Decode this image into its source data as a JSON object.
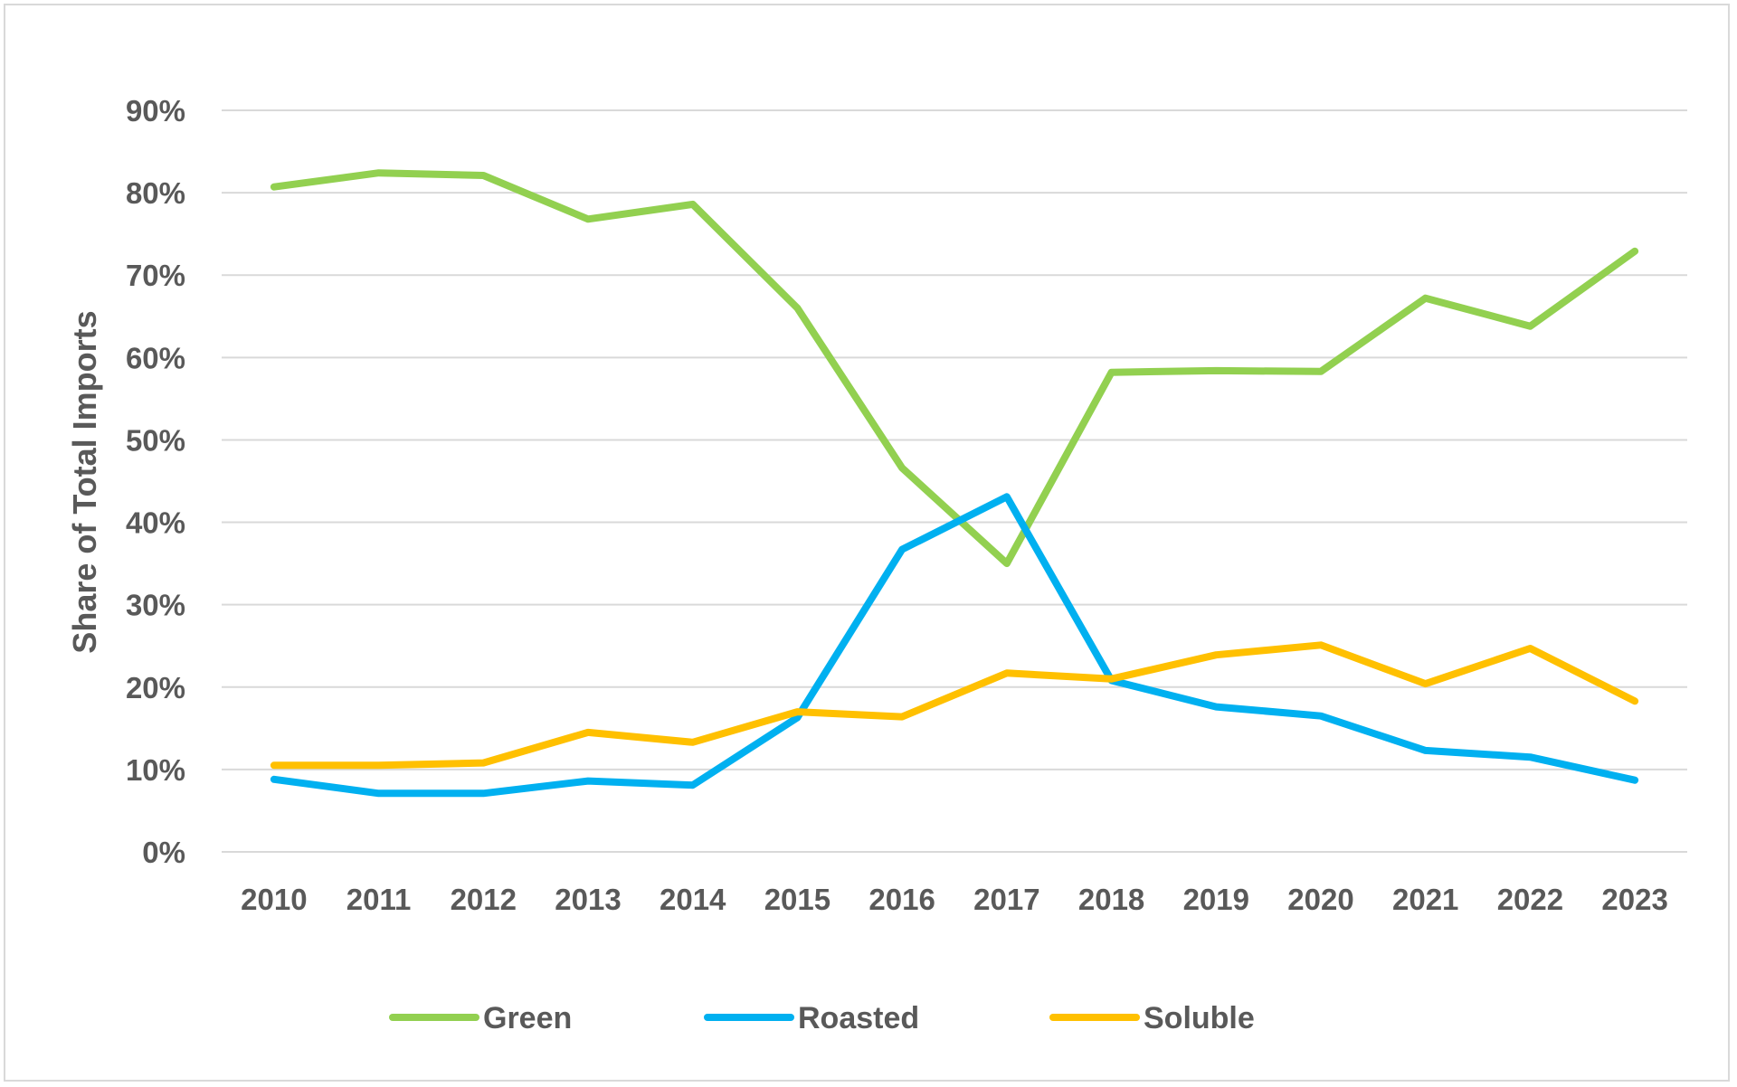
{
  "chart_data": {
    "type": "line",
    "title": "",
    "xlabel": "",
    "ylabel": "Share of Total Imports",
    "x": [
      "2010",
      "2011",
      "2012",
      "2013",
      "2014",
      "2015",
      "2016",
      "2017",
      "2018",
      "2019",
      "2020",
      "2021",
      "2022",
      "2023"
    ],
    "yticks": [
      "0%",
      "10%",
      "20%",
      "30%",
      "40%",
      "50%",
      "60%",
      "70%",
      "80%",
      "90%"
    ],
    "ylim": [
      0,
      90
    ],
    "grid": true,
    "legend_position": "bottom",
    "series": [
      {
        "name": "Green",
        "color": "#92D050",
        "values": [
          80.7,
          82.4,
          82.1,
          76.8,
          78.6,
          66.0,
          46.6,
          35.0,
          58.2,
          58.4,
          58.3,
          67.2,
          63.8,
          72.9
        ]
      },
      {
        "name": "Roasted",
        "color": "#00B0F0",
        "values": [
          8.8,
          7.1,
          7.1,
          8.6,
          8.1,
          16.3,
          36.7,
          43.1,
          20.8,
          17.6,
          16.5,
          12.3,
          11.5,
          8.7
        ]
      },
      {
        "name": "Soluble",
        "color": "#FFC000",
        "values": [
          10.5,
          10.5,
          10.8,
          14.5,
          13.3,
          17.0,
          16.4,
          21.7,
          21.0,
          23.9,
          25.1,
          20.4,
          24.7,
          18.3
        ]
      }
    ]
  }
}
